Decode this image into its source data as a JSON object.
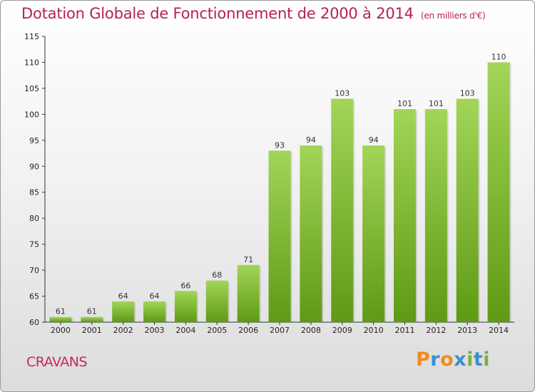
{
  "page": {
    "title": "Dotation Globale de Fonctionnement de 2000 à 2014",
    "subtitle": "(en milliers d'€)",
    "commune": "CRAVANS",
    "logo": "Proxiti"
  },
  "colors": {
    "title": "#b5205a",
    "bar_light": "#a2d558",
    "bar_dark": "#5e9a14",
    "logo_letters": [
      "#f08c1c",
      "#3a8fd0",
      "#f08c1c",
      "#3a8fd0",
      "#7ab23a",
      "#3a8fd0",
      "#7ab23a"
    ]
  },
  "chart_data": {
    "type": "bar",
    "title": "Dotation Globale de Fonctionnement de 2000 à 2014",
    "subtitle": "(en milliers d'€)",
    "categories": [
      "2000",
      "2001",
      "2002",
      "2003",
      "2004",
      "2005",
      "2006",
      "2007",
      "2008",
      "2009",
      "2010",
      "2011",
      "2012",
      "2013",
      "2014"
    ],
    "values": [
      61,
      61,
      64,
      64,
      66,
      68,
      71,
      93,
      94,
      103,
      94,
      101,
      101,
      103,
      110
    ],
    "ylim": [
      60,
      115
    ],
    "yticks": [
      60,
      65,
      70,
      75,
      80,
      85,
      90,
      95,
      100,
      105,
      110,
      115
    ],
    "grid": false,
    "legend": "none"
  }
}
